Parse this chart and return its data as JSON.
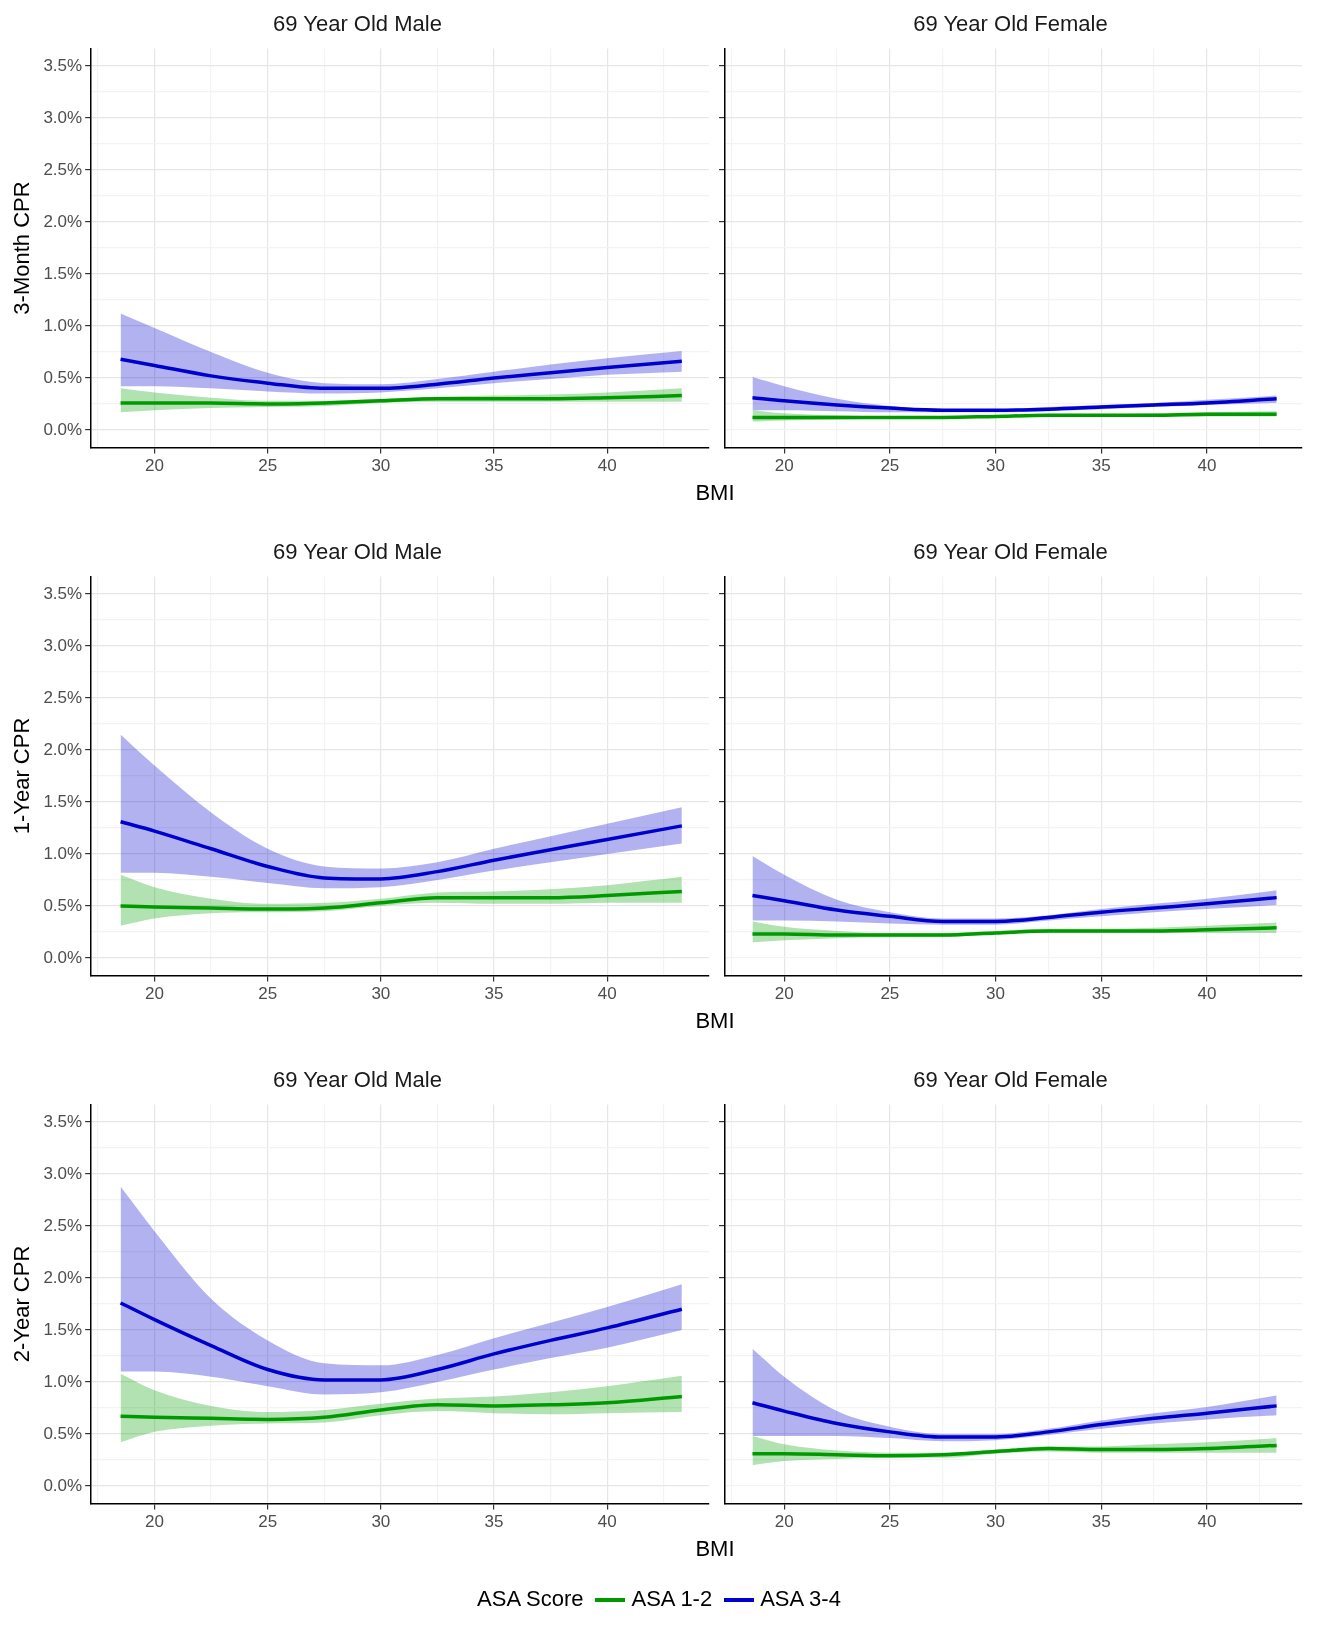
{
  "chart_data": [
    {
      "type": "line",
      "title": "69 Year Old Male",
      "xlabel": "BMI",
      "ylabel": "3-Month CPR",
      "x": [
        18.5,
        20,
        22.5,
        25,
        27.5,
        30,
        32.5,
        35,
        37.5,
        40,
        43.3
      ],
      "xlim": [
        17.2,
        44.5
      ],
      "ylim": [
        -0.17,
        3.67
      ],
      "xticks": [
        {
          "value": 17.5,
          "label": null
        },
        20,
        {
          "value": 22.5,
          "label": null
        },
        25,
        {
          "value": 27.5,
          "label": null
        },
        30,
        {
          "value": 32.5,
          "label": null
        },
        35,
        {
          "value": 37.5,
          "label": null
        },
        40,
        {
          "value": 42.5,
          "label": null
        }
      ],
      "yticks": [
        {
          "value": 0,
          "label": "0.0%"
        },
        {
          "value": 0.25,
          "label": null
        },
        {
          "value": 0.5,
          "label": "0.5%"
        },
        {
          "value": 0.75,
          "label": null
        },
        {
          "value": 1,
          "label": "1.0%"
        },
        {
          "value": 1.25,
          "label": null
        },
        {
          "value": 1.5,
          "label": "1.5%"
        },
        {
          "value": 1.75,
          "label": null
        },
        {
          "value": 2,
          "label": "2.0%"
        },
        {
          "value": 2.25,
          "label": null
        },
        {
          "value": 2.5,
          "label": "2.5%"
        },
        {
          "value": 2.75,
          "label": null
        },
        {
          "value": 3,
          "label": "3.0%"
        },
        {
          "value": 3.25,
          "label": null
        },
        {
          "value": 3.5,
          "label": "3.5%"
        }
      ],
      "grid": true,
      "series": [
        {
          "color": "#009a00",
          "values": [
            0.26,
            0.26,
            0.26,
            0.25,
            0.26,
            0.28,
            0.3,
            0.3,
            0.3,
            0.31,
            0.33
          ],
          "lower": [
            0.17,
            0.19,
            0.21,
            0.22,
            0.23,
            0.26,
            0.27,
            0.27,
            0.27,
            0.27,
            0.27
          ],
          "upper": [
            0.4,
            0.36,
            0.31,
            0.28,
            0.28,
            0.3,
            0.32,
            0.33,
            0.34,
            0.36,
            0.4
          ]
        },
        {
          "color": "#0000cc",
          "values": [
            0.68,
            0.62,
            0.52,
            0.45,
            0.4,
            0.4,
            0.44,
            0.5,
            0.55,
            0.6,
            0.66
          ],
          "lower": [
            0.42,
            0.42,
            0.4,
            0.37,
            0.35,
            0.36,
            0.4,
            0.45,
            0.49,
            0.53,
            0.56
          ],
          "upper": [
            1.12,
            0.98,
            0.75,
            0.55,
            0.45,
            0.44,
            0.49,
            0.56,
            0.63,
            0.69,
            0.76
          ]
        }
      ]
    },
    {
      "type": "line",
      "title": "69 Year Old Female",
      "x": [
        18.5,
        20,
        22.5,
        25,
        27.5,
        30,
        32.5,
        35,
        37.5,
        40,
        43.3
      ],
      "xlim": [
        17.2,
        44.5
      ],
      "ylim": [
        -0.17,
        3.67
      ],
      "tick_labels": "x",
      "xticks": [
        {
          "value": 17.5,
          "label": null
        },
        20,
        {
          "value": 22.5,
          "label": null
        },
        25,
        {
          "value": 27.5,
          "label": null
        },
        30,
        {
          "value": 32.5,
          "label": null
        },
        35,
        {
          "value": 37.5,
          "label": null
        },
        40,
        {
          "value": 42.5,
          "label": null
        }
      ],
      "yticks": [
        0,
        {
          "value": 0.25,
          "label": null
        },
        0.5,
        {
          "value": 0.75,
          "label": null
        },
        1,
        {
          "value": 1.25,
          "label": null
        },
        1.5,
        {
          "value": 1.75,
          "label": null
        },
        2,
        {
          "value": 2.25,
          "label": null
        },
        2.5,
        {
          "value": 2.75,
          "label": null
        },
        3,
        {
          "value": 3.25,
          "label": null
        },
        3.5
      ],
      "grid": true,
      "series": [
        {
          "color": "#009a00",
          "values": [
            0.12,
            0.12,
            0.12,
            0.12,
            0.12,
            0.13,
            0.14,
            0.14,
            0.14,
            0.15,
            0.15
          ],
          "lower": [
            0.08,
            0.09,
            0.1,
            0.11,
            0.11,
            0.12,
            0.13,
            0.13,
            0.13,
            0.13,
            0.13
          ],
          "upper": [
            0.19,
            0.16,
            0.14,
            0.13,
            0.13,
            0.14,
            0.15,
            0.15,
            0.16,
            0.17,
            0.18
          ]
        },
        {
          "color": "#0000cc",
          "values": [
            0.31,
            0.28,
            0.24,
            0.21,
            0.19,
            0.19,
            0.2,
            0.22,
            0.24,
            0.26,
            0.3
          ],
          "lower": [
            0.19,
            0.19,
            0.18,
            0.17,
            0.17,
            0.17,
            0.18,
            0.2,
            0.22,
            0.24,
            0.26
          ],
          "upper": [
            0.51,
            0.42,
            0.3,
            0.23,
            0.2,
            0.2,
            0.22,
            0.24,
            0.26,
            0.29,
            0.33
          ]
        }
      ]
    },
    {
      "type": "line",
      "title": "69 Year Old Male",
      "xlabel": "BMI",
      "ylabel": "1-Year CPR",
      "x": [
        18.5,
        20,
        22.5,
        25,
        27.5,
        30,
        32.5,
        35,
        37.5,
        40,
        43.3
      ],
      "xlim": [
        17.2,
        44.5
      ],
      "ylim": [
        -0.17,
        3.67
      ],
      "xticks": [
        {
          "value": 17.5,
          "label": null
        },
        20,
        {
          "value": 22.5,
          "label": null
        },
        25,
        {
          "value": 27.5,
          "label": null
        },
        30,
        {
          "value": 32.5,
          "label": null
        },
        35,
        {
          "value": 37.5,
          "label": null
        },
        40,
        {
          "value": 42.5,
          "label": null
        }
      ],
      "yticks": [
        {
          "value": 0,
          "label": "0.0%"
        },
        {
          "value": 0.25,
          "label": null
        },
        {
          "value": 0.5,
          "label": "0.5%"
        },
        {
          "value": 0.75,
          "label": null
        },
        {
          "value": 1,
          "label": "1.0%"
        },
        {
          "value": 1.25,
          "label": null
        },
        {
          "value": 1.5,
          "label": "1.5%"
        },
        {
          "value": 1.75,
          "label": null
        },
        {
          "value": 2,
          "label": "2.0%"
        },
        {
          "value": 2.25,
          "label": null
        },
        {
          "value": 2.5,
          "label": "2.5%"
        },
        {
          "value": 2.75,
          "label": null
        },
        {
          "value": 3,
          "label": "3.0%"
        },
        {
          "value": 3.25,
          "label": null
        },
        {
          "value": 3.5,
          "label": "3.5%"
        }
      ],
      "grid": true,
      "series": [
        {
          "color": "#009a00",
          "values": [
            0.5,
            0.49,
            0.48,
            0.47,
            0.48,
            0.53,
            0.58,
            0.58,
            0.58,
            0.6,
            0.64
          ],
          "lower": [
            0.31,
            0.38,
            0.43,
            0.44,
            0.45,
            0.5,
            0.53,
            0.52,
            0.52,
            0.53,
            0.53
          ],
          "upper": [
            0.8,
            0.68,
            0.57,
            0.52,
            0.53,
            0.57,
            0.63,
            0.64,
            0.66,
            0.7,
            0.78
          ]
        },
        {
          "color": "#0000cc",
          "values": [
            1.31,
            1.22,
            1.05,
            0.88,
            0.77,
            0.76,
            0.83,
            0.94,
            1.04,
            1.14,
            1.27
          ],
          "lower": [
            0.82,
            0.82,
            0.78,
            0.72,
            0.67,
            0.68,
            0.75,
            0.84,
            0.92,
            1.0,
            1.1
          ],
          "upper": [
            2.15,
            1.85,
            1.4,
            1.05,
            0.88,
            0.86,
            0.92,
            1.05,
            1.17,
            1.29,
            1.45
          ]
        }
      ]
    },
    {
      "type": "line",
      "title": "69 Year Old Female",
      "x": [
        18.5,
        20,
        22.5,
        25,
        27.5,
        30,
        32.5,
        35,
        37.5,
        40,
        43.3
      ],
      "xlim": [
        17.2,
        44.5
      ],
      "ylim": [
        -0.17,
        3.67
      ],
      "tick_labels": "x",
      "xticks": [
        {
          "value": 17.5,
          "label": null
        },
        20,
        {
          "value": 22.5,
          "label": null
        },
        25,
        {
          "value": 27.5,
          "label": null
        },
        30,
        {
          "value": 32.5,
          "label": null
        },
        35,
        {
          "value": 37.5,
          "label": null
        },
        40,
        {
          "value": 42.5,
          "label": null
        }
      ],
      "yticks": [
        0,
        {
          "value": 0.25,
          "label": null
        },
        0.5,
        {
          "value": 0.75,
          "label": null
        },
        1,
        {
          "value": 1.25,
          "label": null
        },
        1.5,
        {
          "value": 1.75,
          "label": null
        },
        2,
        {
          "value": 2.25,
          "label": null
        },
        2.5,
        {
          "value": 2.75,
          "label": null
        },
        3,
        {
          "value": 3.25,
          "label": null
        },
        3.5
      ],
      "grid": true,
      "series": [
        {
          "color": "#009a00",
          "values": [
            0.23,
            0.23,
            0.22,
            0.22,
            0.22,
            0.24,
            0.26,
            0.26,
            0.26,
            0.27,
            0.29
          ],
          "lower": [
            0.15,
            0.17,
            0.19,
            0.2,
            0.2,
            0.23,
            0.24,
            0.24,
            0.24,
            0.24,
            0.24
          ],
          "upper": [
            0.35,
            0.3,
            0.26,
            0.24,
            0.24,
            0.26,
            0.28,
            0.28,
            0.29,
            0.31,
            0.34
          ]
        },
        {
          "color": "#0000cc",
          "values": [
            0.6,
            0.55,
            0.46,
            0.4,
            0.35,
            0.35,
            0.39,
            0.44,
            0.48,
            0.52,
            0.58
          ],
          "lower": [
            0.36,
            0.36,
            0.35,
            0.33,
            0.32,
            0.32,
            0.36,
            0.4,
            0.44,
            0.47,
            0.51
          ],
          "upper": [
            0.98,
            0.8,
            0.56,
            0.44,
            0.38,
            0.38,
            0.41,
            0.47,
            0.52,
            0.57,
            0.65
          ]
        }
      ]
    },
    {
      "type": "line",
      "title": "69 Year Old Male",
      "xlabel": "BMI",
      "ylabel": "2-Year CPR",
      "x": [
        18.5,
        20,
        22.5,
        25,
        27.5,
        30,
        32.5,
        35,
        37.5,
        40,
        43.3
      ],
      "xlim": [
        17.2,
        44.5
      ],
      "ylim": [
        -0.17,
        3.67
      ],
      "xticks": [
        {
          "value": 17.5,
          "label": null
        },
        20,
        {
          "value": 22.5,
          "label": null
        },
        25,
        {
          "value": 27.5,
          "label": null
        },
        30,
        {
          "value": 32.5,
          "label": null
        },
        35,
        {
          "value": 37.5,
          "label": null
        },
        40,
        {
          "value": 42.5,
          "label": null
        }
      ],
      "yticks": [
        {
          "value": 0,
          "label": "0.0%"
        },
        {
          "value": 0.25,
          "label": null
        },
        {
          "value": 0.5,
          "label": "0.5%"
        },
        {
          "value": 0.75,
          "label": null
        },
        {
          "value": 1,
          "label": "1.0%"
        },
        {
          "value": 1.25,
          "label": null
        },
        {
          "value": 1.5,
          "label": "1.5%"
        },
        {
          "value": 1.75,
          "label": null
        },
        {
          "value": 2,
          "label": "2.0%"
        },
        {
          "value": 2.25,
          "label": null
        },
        {
          "value": 2.5,
          "label": "2.5%"
        },
        {
          "value": 2.75,
          "label": null
        },
        {
          "value": 3,
          "label": "3.0%"
        },
        {
          "value": 3.25,
          "label": null
        },
        {
          "value": 3.5,
          "label": "3.5%"
        }
      ],
      "grid": true,
      "series": [
        {
          "color": "#009a00",
          "values": [
            0.67,
            0.66,
            0.65,
            0.64,
            0.66,
            0.73,
            0.78,
            0.77,
            0.78,
            0.8,
            0.86
          ],
          "lower": [
            0.42,
            0.52,
            0.58,
            0.6,
            0.61,
            0.68,
            0.72,
            0.7,
            0.69,
            0.7,
            0.71
          ],
          "upper": [
            1.08,
            0.92,
            0.77,
            0.71,
            0.73,
            0.79,
            0.84,
            0.86,
            0.9,
            0.96,
            1.06
          ]
        },
        {
          "color": "#0000cc",
          "values": [
            1.76,
            1.6,
            1.35,
            1.12,
            1.02,
            1.02,
            1.12,
            1.27,
            1.4,
            1.52,
            1.7
          ],
          "lower": [
            1.1,
            1.1,
            1.05,
            0.96,
            0.88,
            0.9,
            1.0,
            1.12,
            1.23,
            1.33,
            1.5
          ],
          "upper": [
            2.88,
            2.45,
            1.8,
            1.4,
            1.18,
            1.16,
            1.26,
            1.42,
            1.57,
            1.72,
            1.94
          ]
        }
      ]
    },
    {
      "type": "line",
      "title": "69 Year Old Female",
      "legend": "bottom",
      "legend_title": "ASA Score",
      "x": [
        18.5,
        20,
        22.5,
        25,
        27.5,
        30,
        32.5,
        35,
        37.5,
        40,
        43.3
      ],
      "xlim": [
        17.2,
        44.5
      ],
      "ylim": [
        -0.17,
        3.67
      ],
      "tick_labels": "x",
      "xticks": [
        {
          "value": 17.5,
          "label": null
        },
        20,
        {
          "value": 22.5,
          "label": null
        },
        25,
        {
          "value": 27.5,
          "label": null
        },
        30,
        {
          "value": 32.5,
          "label": null
        },
        35,
        {
          "value": 37.5,
          "label": null
        },
        40,
        {
          "value": 42.5,
          "label": null
        }
      ],
      "yticks": [
        0,
        {
          "value": 0.25,
          "label": null
        },
        0.5,
        {
          "value": 0.75,
          "label": null
        },
        1,
        {
          "value": 1.25,
          "label": null
        },
        1.5,
        {
          "value": 1.75,
          "label": null
        },
        2,
        {
          "value": 2.25,
          "label": null
        },
        2.5,
        {
          "value": 2.75,
          "label": null
        },
        3,
        {
          "value": 3.25,
          "label": null
        },
        3.5
      ],
      "grid": true,
      "series": [
        {
          "name": "ASA 1-2",
          "color": "#009a00",
          "values": [
            0.31,
            0.31,
            0.3,
            0.29,
            0.3,
            0.33,
            0.36,
            0.35,
            0.35,
            0.36,
            0.39
          ],
          "lower": [
            0.2,
            0.24,
            0.26,
            0.27,
            0.27,
            0.31,
            0.33,
            0.32,
            0.32,
            0.32,
            0.32
          ],
          "upper": [
            0.48,
            0.4,
            0.34,
            0.32,
            0.32,
            0.35,
            0.38,
            0.38,
            0.4,
            0.42,
            0.46
          ]
        },
        {
          "name": "ASA 3-4",
          "color": "#0000cc",
          "values": [
            0.8,
            0.72,
            0.6,
            0.52,
            0.47,
            0.47,
            0.52,
            0.59,
            0.65,
            0.7,
            0.77
          ],
          "lower": [
            0.48,
            0.48,
            0.48,
            0.46,
            0.43,
            0.44,
            0.49,
            0.55,
            0.6,
            0.64,
            0.68
          ],
          "upper": [
            1.32,
            1.05,
            0.72,
            0.57,
            0.5,
            0.5,
            0.55,
            0.63,
            0.7,
            0.76,
            0.87
          ]
        }
      ]
    }
  ]
}
